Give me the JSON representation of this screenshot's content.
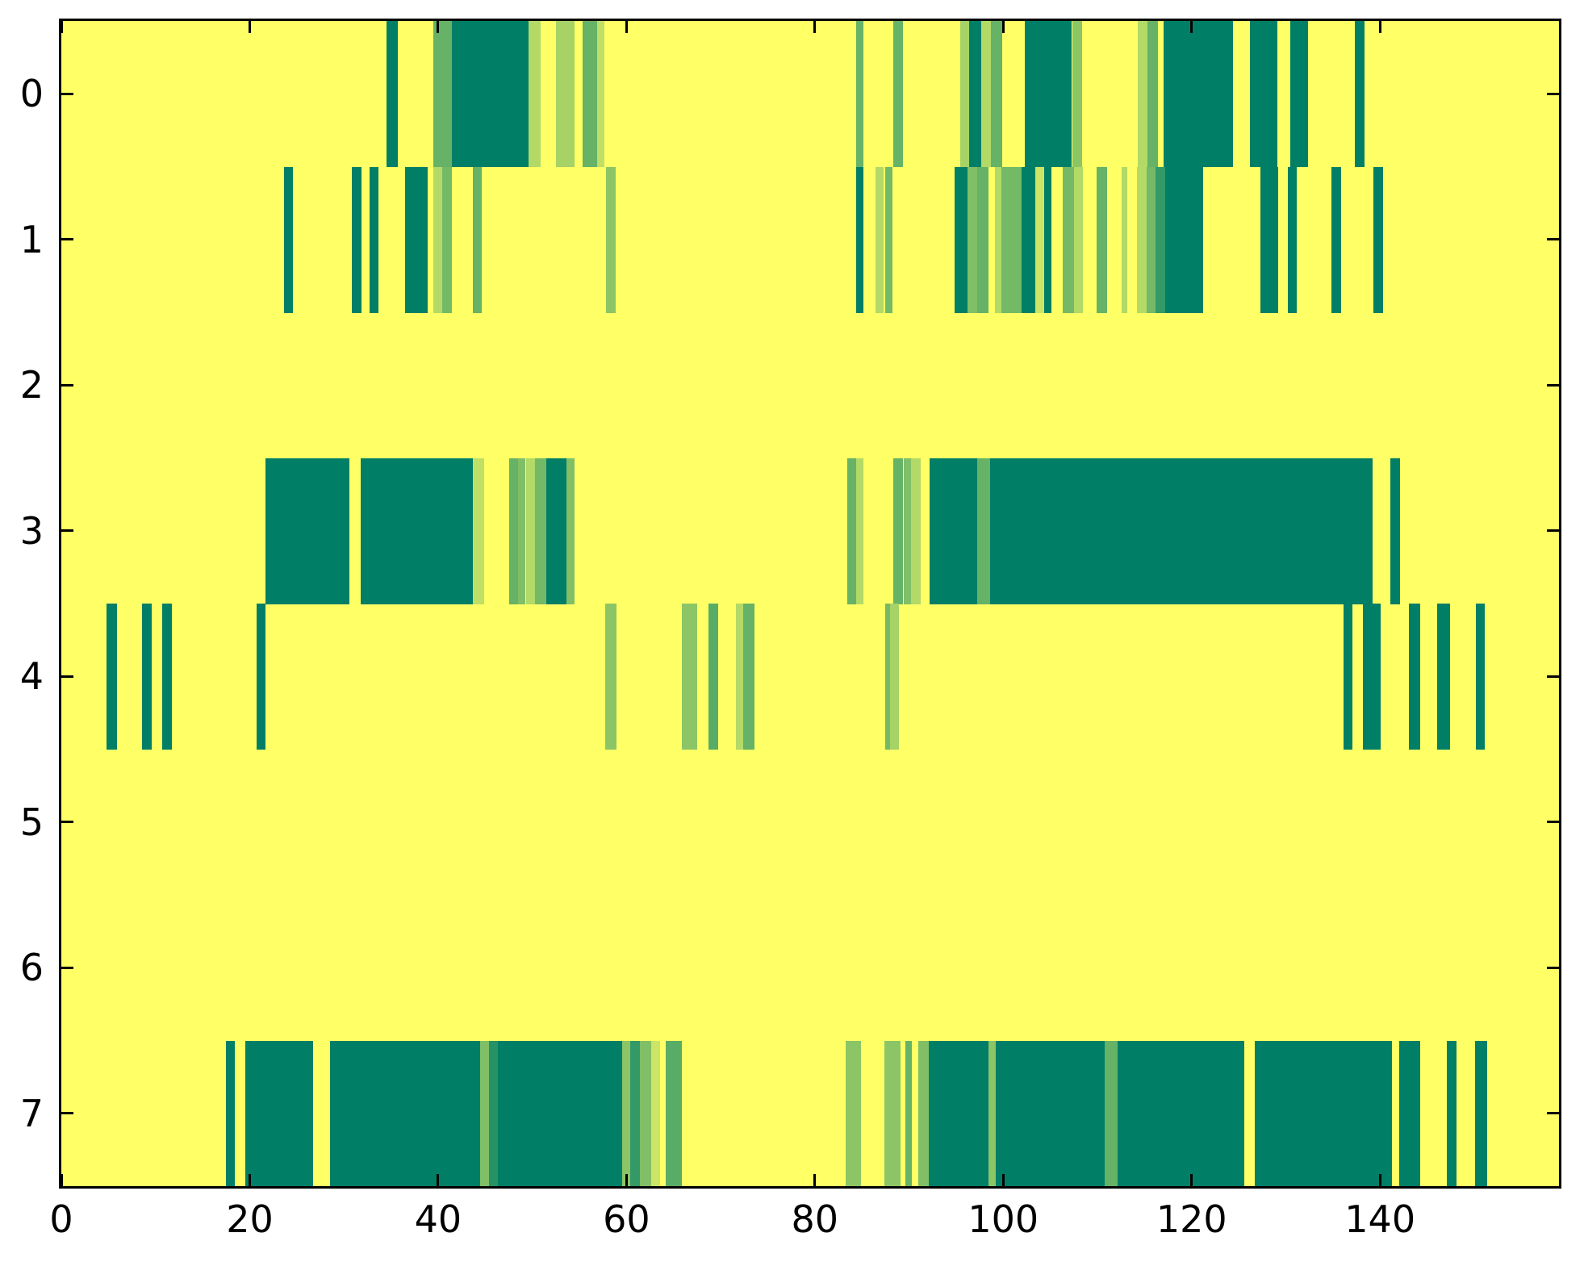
{
  "chart_data": {
    "type": "heatmap",
    "title": "",
    "xlabel": "",
    "ylabel": "",
    "x_range": [
      0,
      159
    ],
    "x_ticks": [
      0,
      20,
      40,
      60,
      80,
      100,
      120,
      140
    ],
    "y_tick_labels": [
      "0",
      "1",
      "2",
      "3",
      "4",
      "5",
      "6",
      "7"
    ],
    "grid": false,
    "legend": "none",
    "colormap": {
      "name": "summer (reversed intensity)",
      "background_zero": "#ffff66",
      "full_intensity": "#008066",
      "constant_blue": 102
    },
    "rows": [
      {
        "label": "0",
        "segments": [
          [
            34.5,
            35.7,
            1
          ],
          [
            39.5,
            41.5,
            0.6
          ],
          [
            41.5,
            49.6,
            1
          ],
          [
            49.6,
            50.9,
            0.3
          ],
          [
            52.5,
            54.5,
            0.35
          ],
          [
            55.3,
            56.9,
            0.6
          ],
          [
            56.9,
            57.7,
            0.25
          ],
          [
            84.4,
            85.2,
            0.6
          ],
          [
            88.3,
            89.4,
            0.6
          ],
          [
            95.4,
            96.4,
            0.35
          ],
          [
            96.4,
            97.7,
            1
          ],
          [
            97.7,
            98.7,
            0.3
          ],
          [
            98.7,
            99.9,
            0.6
          ],
          [
            102.3,
            107.3,
            1
          ],
          [
            107.3,
            108.4,
            0.45
          ],
          [
            114.3,
            115.3,
            0.3
          ],
          [
            115.3,
            116.4,
            0.6
          ],
          [
            117.0,
            124.4,
            1
          ],
          [
            126.2,
            129.1,
            1
          ],
          [
            130.5,
            132.4,
            1
          ],
          [
            137.3,
            138.4,
            1
          ]
        ]
      },
      {
        "label": "1",
        "segments": [
          [
            23.6,
            24.6,
            1
          ],
          [
            30.8,
            31.9,
            1
          ],
          [
            32.7,
            33.7,
            1
          ],
          [
            36.5,
            38.9,
            1
          ],
          [
            39.5,
            40.4,
            0.3
          ],
          [
            40.4,
            41.5,
            0.55
          ],
          [
            43.7,
            44.6,
            0.6
          ],
          [
            57.8,
            58.9,
            0.45
          ],
          [
            84.4,
            85.2,
            1
          ],
          [
            86.4,
            87.3,
            0.3
          ],
          [
            87.5,
            88.2,
            0.55
          ],
          [
            94.8,
            96.2,
            1
          ],
          [
            96.2,
            97.2,
            0.5
          ],
          [
            97.2,
            98.4,
            0.6
          ],
          [
            99.1,
            99.8,
            0.3
          ],
          [
            99.8,
            101.9,
            0.55
          ],
          [
            101.9,
            103.4,
            1
          ],
          [
            103.4,
            104.3,
            0.2
          ],
          [
            104.3,
            105.1,
            1
          ],
          [
            106.3,
            107.5,
            0.55
          ],
          [
            107.5,
            108.5,
            0.3
          ],
          [
            109.9,
            111.0,
            0.6
          ],
          [
            112.6,
            113.2,
            0.3
          ],
          [
            114.2,
            115.2,
            0.3
          ],
          [
            115.2,
            116.2,
            0.55
          ],
          [
            116.2,
            117.2,
            0.8
          ],
          [
            117.2,
            121.2,
            1
          ],
          [
            127.3,
            129.2,
            1
          ],
          [
            130.2,
            131.2,
            1
          ],
          [
            134.8,
            135.9,
            1
          ],
          [
            139.3,
            140.3,
            1
          ]
        ]
      },
      {
        "label": "2",
        "segments": []
      },
      {
        "label": "3",
        "segments": [
          [
            21.7,
            30.6,
            1
          ],
          [
            31.8,
            43.7,
            1
          ],
          [
            43.7,
            44.9,
            0.25
          ],
          [
            47.5,
            48.5,
            0.6
          ],
          [
            48.5,
            49.3,
            0.5
          ],
          [
            49.3,
            50.3,
            0.3
          ],
          [
            50.3,
            51.5,
            0.55
          ],
          [
            51.5,
            53.6,
            1
          ],
          [
            53.6,
            54.5,
            0.5
          ],
          [
            83.4,
            84.4,
            0.6
          ],
          [
            84.4,
            85.2,
            0.3
          ],
          [
            88.3,
            89.4,
            0.6
          ],
          [
            89.4,
            90.2,
            0.5
          ],
          [
            90.2,
            91.2,
            0.3
          ],
          [
            92.2,
            97.2,
            1
          ],
          [
            97.2,
            98.6,
            0.6
          ],
          [
            98.6,
            139.2,
            1
          ],
          [
            141.1,
            142.1,
            1
          ]
        ]
      },
      {
        "label": "4",
        "segments": [
          [
            4.8,
            5.9,
            1
          ],
          [
            8.6,
            9.6,
            1
          ],
          [
            10.7,
            11.7,
            1
          ],
          [
            20.7,
            21.7,
            1
          ],
          [
            57.7,
            58.9,
            0.45
          ],
          [
            65.9,
            67.5,
            0.45
          ],
          [
            68.7,
            69.7,
            0.65
          ],
          [
            71.6,
            72.4,
            0.3
          ],
          [
            72.4,
            73.6,
            0.6
          ],
          [
            87.5,
            88.0,
            0.55
          ],
          [
            88.0,
            88.9,
            0.35
          ],
          [
            136.1,
            137.1,
            1
          ],
          [
            138.2,
            140.1,
            1
          ],
          [
            143.1,
            144.3,
            1
          ],
          [
            146.1,
            147.4,
            1
          ],
          [
            150.2,
            151.1,
            1
          ]
        ]
      },
      {
        "label": "5",
        "segments": []
      },
      {
        "label": "6",
        "segments": []
      },
      {
        "label": "7",
        "segments": [
          [
            17.5,
            18.4,
            1
          ],
          [
            19.5,
            26.7,
            1
          ],
          [
            28.5,
            44.5,
            1
          ],
          [
            44.5,
            45.4,
            0.5
          ],
          [
            45.4,
            46.3,
            0.85
          ],
          [
            46.3,
            59.5,
            1
          ],
          [
            59.5,
            60.4,
            0.45
          ],
          [
            60.4,
            61.4,
            0.8
          ],
          [
            61.4,
            62.6,
            0.5
          ],
          [
            62.6,
            63.6,
            0.2
          ],
          [
            64.2,
            65.9,
            0.65
          ],
          [
            83.3,
            84.9,
            0.45
          ],
          [
            87.4,
            89.1,
            0.45
          ],
          [
            89.6,
            90.3,
            0.6
          ],
          [
            91.0,
            92.1,
            0.5
          ],
          [
            92.1,
            98.4,
            1
          ],
          [
            98.4,
            99.2,
            0.45
          ],
          [
            99.2,
            110.8,
            1
          ],
          [
            110.8,
            112.1,
            0.6
          ],
          [
            112.1,
            125.6,
            1
          ],
          [
            126.7,
            141.3,
            1
          ],
          [
            142.0,
            144.3,
            1
          ],
          [
            147.1,
            148.1,
            1
          ],
          [
            150.1,
            151.4,
            1
          ]
        ]
      }
    ]
  }
}
